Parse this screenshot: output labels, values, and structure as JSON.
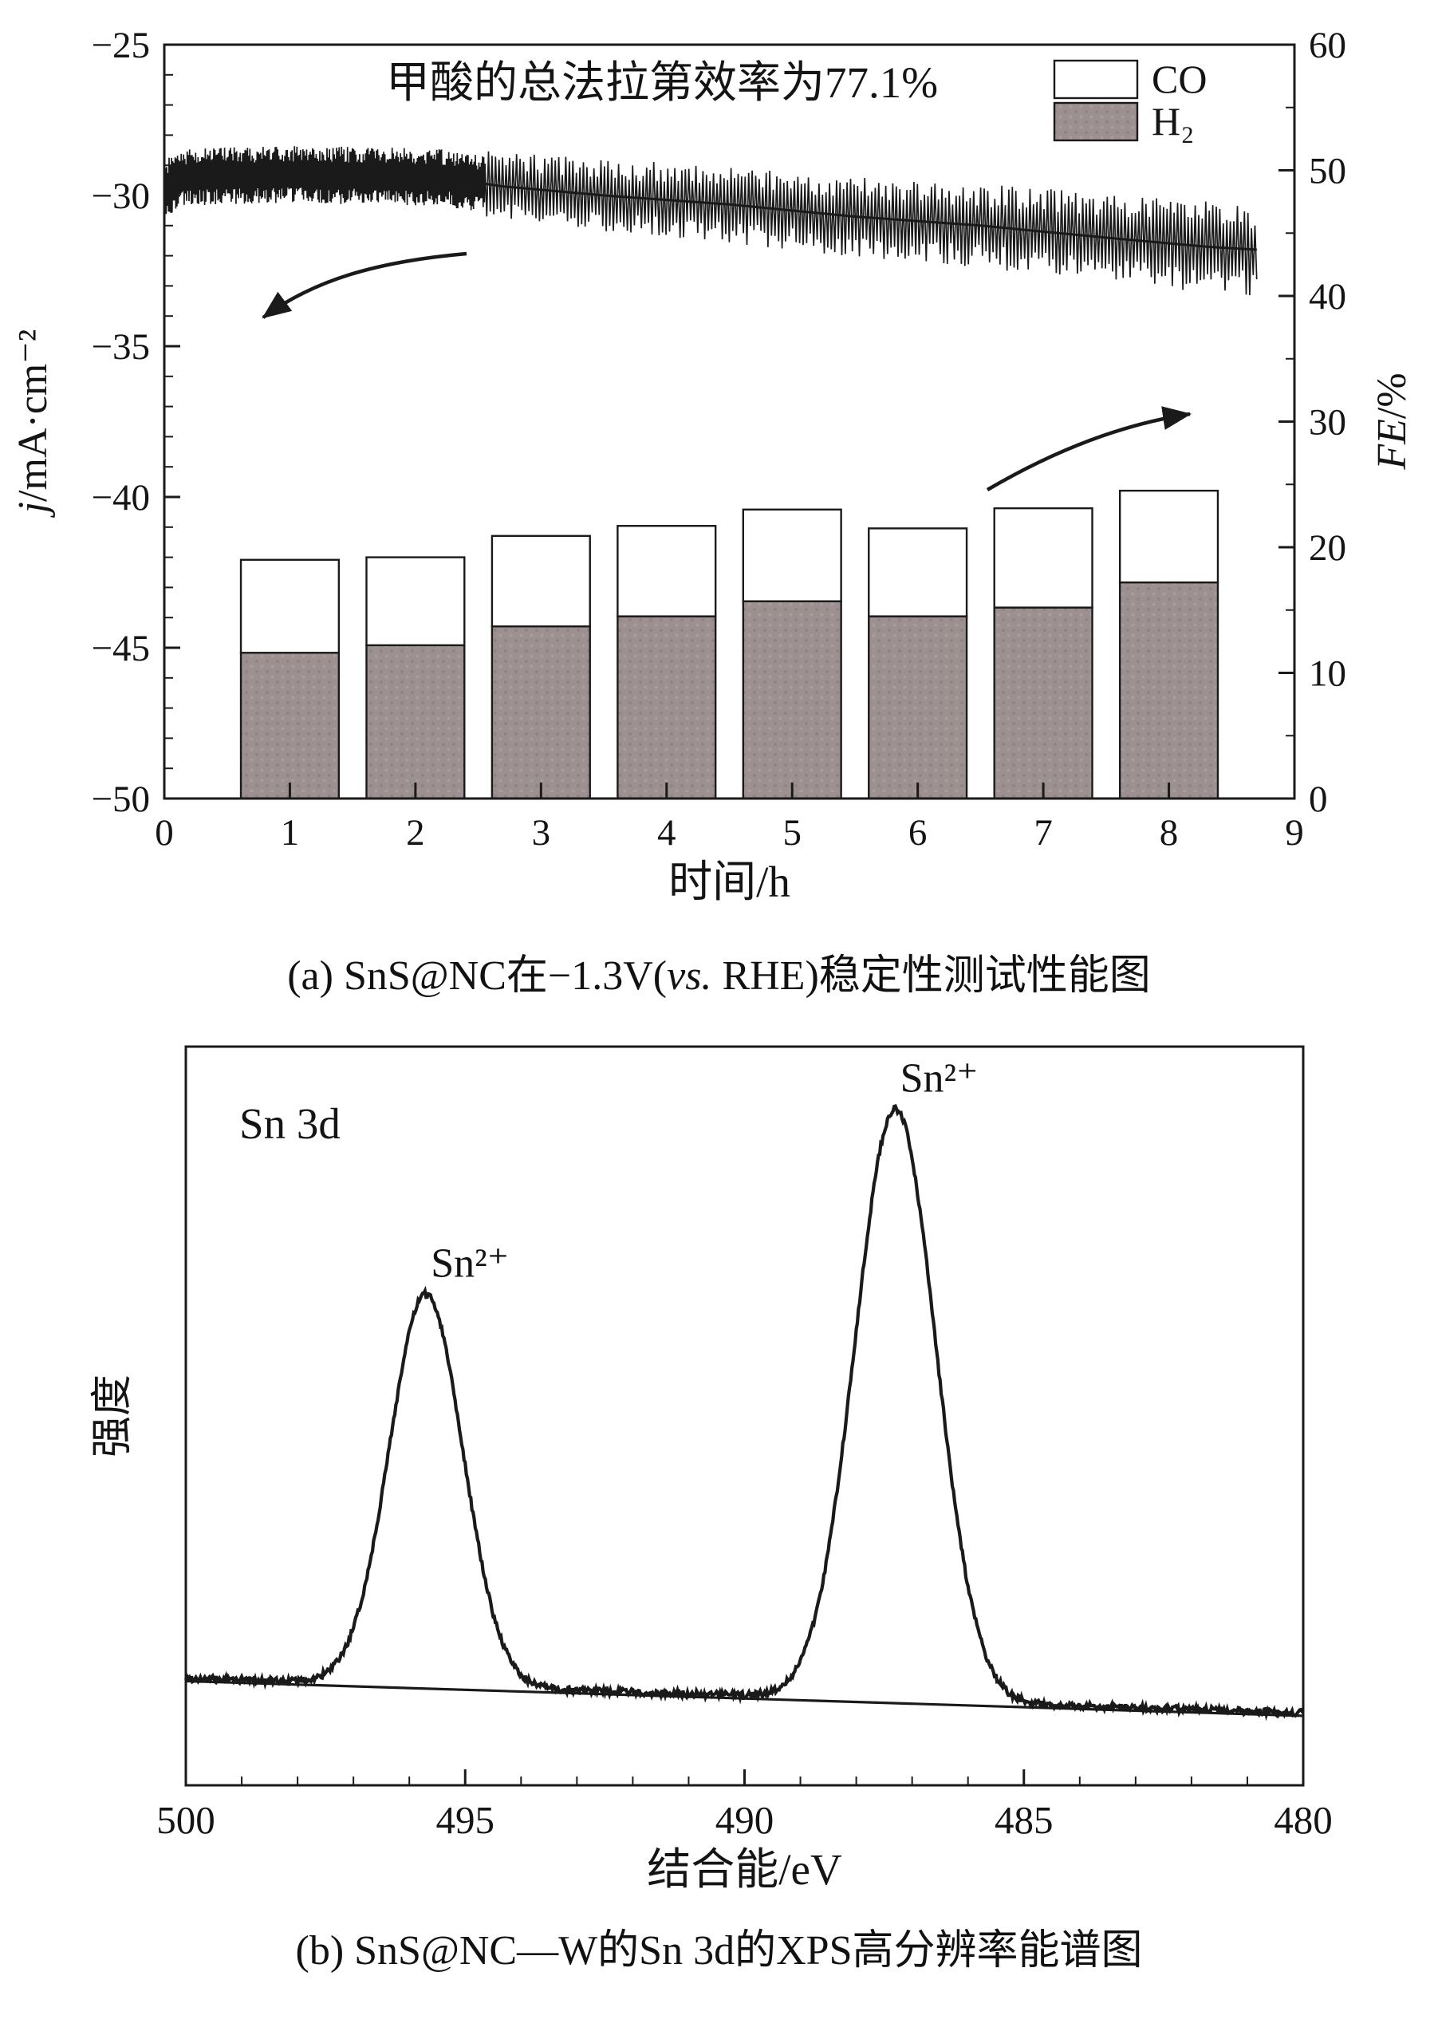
{
  "colors": {
    "ink": "#1a1a1a",
    "bar_gray": "#9c9090",
    "bar_gray_dot_light": "#a89c9c",
    "bar_gray_dot_dark": "#8f8383"
  },
  "chart_data": [
    {
      "type": "bar+line",
      "title": "甲酸的总法拉第效率为77.1%",
      "xlabel": "时间/h",
      "ylabel_left": "j/mA·cm⁻²",
      "ylabel_left_italic": "j",
      "ylabel_left_rest": "/mA·cm⁻²",
      "ylabel_right": "FE/%",
      "ylabel_right_italic": "FE",
      "ylabel_right_rest": "/%",
      "x_range": [
        0,
        9
      ],
      "y_left_range": [
        -50,
        -25
      ],
      "y_right_range": [
        0,
        60
      ],
      "x_ticks": [
        0,
        1,
        2,
        3,
        4,
        5,
        6,
        7,
        8,
        9
      ],
      "y_left_ticks": [
        -25,
        -30,
        -35,
        -40,
        -45,
        -50
      ],
      "y_right_ticks": [
        0,
        10,
        20,
        30,
        40,
        50,
        60
      ],
      "legend": [
        "CO",
        "H₂"
      ],
      "legend_position": "top-right",
      "grid": false,
      "bars": {
        "hours": [
          1,
          2,
          3,
          4,
          5,
          6,
          7,
          8
        ],
        "H2_FE_percent": [
          11.6,
          12.2,
          13.7,
          14.5,
          15.7,
          14.5,
          15.2,
          17.2
        ],
        "CO_FE_percent": [
          7.4,
          7.0,
          7.2,
          7.2,
          7.3,
          7.0,
          7.9,
          7.3
        ],
        "bar_width_h": 0.78
      },
      "current_trace": {
        "axis": "left",
        "mean_points": [
          [
            0,
            -29.8
          ],
          [
            0.15,
            -29.4
          ],
          [
            1,
            -29.3
          ],
          [
            2.2,
            -29.4
          ],
          [
            2.7,
            -29.7
          ],
          [
            3.5,
            -30.0
          ],
          [
            4.5,
            -30.3
          ],
          [
            5.5,
            -30.7
          ],
          [
            6.5,
            -31.0
          ],
          [
            7.5,
            -31.4
          ],
          [
            8.3,
            -31.7
          ],
          [
            8.7,
            -31.8
          ]
        ],
        "noise_amp_start": 0.95,
        "noise_amp_end": 1.55,
        "t_end": 8.7
      },
      "annotation_arrows": [
        "points-to-left-current-axis",
        "points-to-right-FE-axis"
      ],
      "caption": {
        "prefix": "(a) SnS@NC在−1.3V(",
        "italic": "vs.",
        "suffix": " RHE)稳定性测试性能图"
      }
    },
    {
      "type": "line",
      "corner_label": "Sn 3d",
      "xlabel": "结合能/eV",
      "ylabel": "强度",
      "x_range": [
        500,
        480
      ],
      "x_reversed": true,
      "x_ticks": [
        500,
        495,
        490,
        485,
        480
      ],
      "peaks": [
        {
          "label": "Sn²⁺",
          "center_eV": 495.7,
          "height": 0.53,
          "fwhm_eV": 1.55
        },
        {
          "label": "Sn²⁺",
          "center_eV": 487.3,
          "height": 0.8,
          "fwhm_eV": 1.7
        }
      ],
      "baseline": {
        "left": 0.145,
        "right": 0.098
      },
      "caption": {
        "text": "(b) SnS@NC—W的Sn 3d的XPS高分辨率能谱图"
      }
    }
  ]
}
